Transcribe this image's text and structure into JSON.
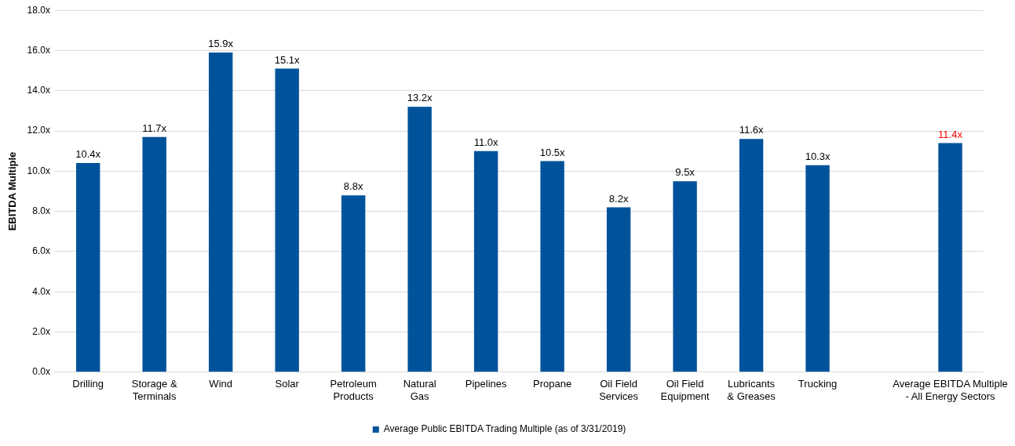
{
  "chart_data": {
    "type": "bar",
    "ylabel": "EBITDA Multiple",
    "categories": [
      "Drilling",
      "Storage & Terminals",
      "Wind",
      "Solar",
      "Petroleum Products",
      "Natural Gas",
      "Pipelines",
      "Propane",
      "Oil Field Services",
      "Oil Field Equipment",
      "Lubricants & Greases",
      "Trucking",
      null,
      "Average EBITDA Multiple - All Energy Sectors"
    ],
    "series": [
      {
        "name": "Average Public EBITDA Trading Multiple (as of 3/31/2019)",
        "color": "#00539b",
        "values": [
          10.4,
          11.7,
          15.9,
          15.1,
          8.8,
          13.2,
          11.0,
          10.5,
          8.2,
          9.5,
          11.6,
          10.3,
          null,
          11.4
        ]
      }
    ],
    "value_labels": [
      "10.4x",
      "11.7x",
      "15.9x",
      "15.1x",
      "8.8x",
      "13.2x",
      "11.0x",
      "10.5x",
      "8.2x",
      "9.5x",
      "11.6x",
      "10.3x",
      null,
      "11.4x"
    ],
    "ylim": [
      0,
      18
    ],
    "yticks": [
      {
        "value": 0,
        "label": "0.0x"
      },
      {
        "value": 2,
        "label": "2.0x"
      },
      {
        "value": 4,
        "label": "4.0x"
      },
      {
        "value": 6,
        "label": "6.0x"
      },
      {
        "value": 8,
        "label": "8.0x"
      },
      {
        "value": 10,
        "label": "10.0x"
      },
      {
        "value": 12,
        "label": "12.0x"
      },
      {
        "value": 14,
        "label": "14.0x"
      },
      {
        "value": 16,
        "label": "16.0x"
      },
      {
        "value": 18,
        "label": "18.0x"
      }
    ],
    "grid": "y",
    "legend": "bottom"
  }
}
